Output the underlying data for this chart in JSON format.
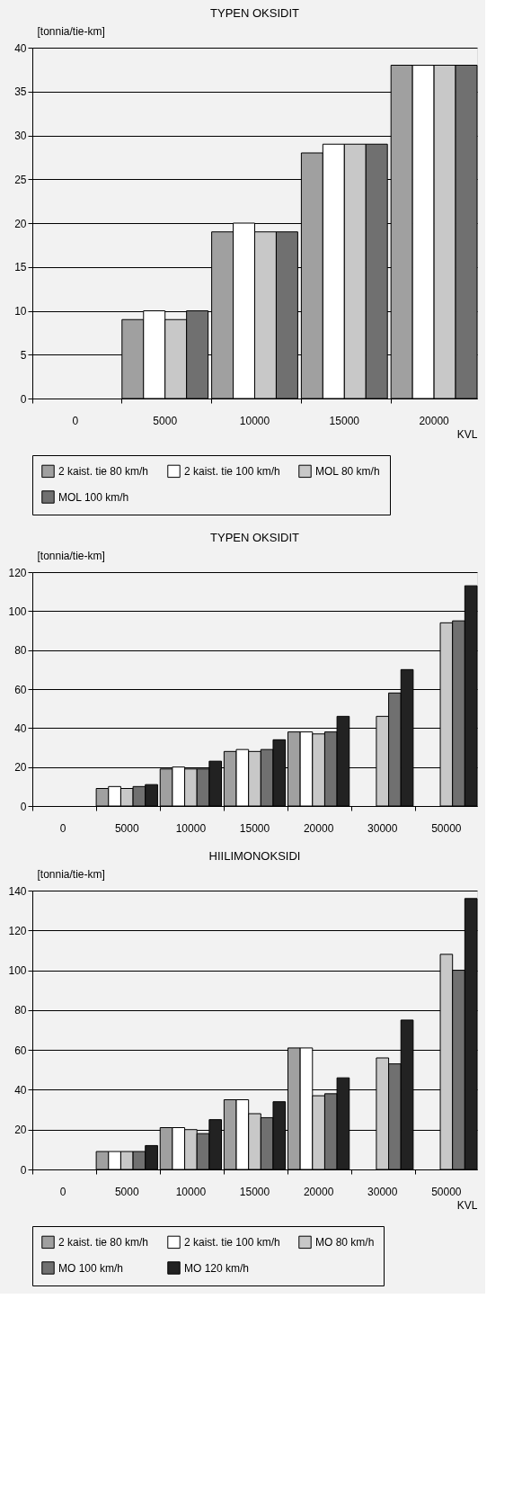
{
  "chart_data": [
    {
      "type": "bar",
      "title": "TYPEN OKSIDIT",
      "ylabel": "[tonnia/tie-km]",
      "xlabel": "KVL",
      "categories": [
        "0",
        "5000",
        "10000",
        "15000",
        "20000"
      ],
      "ylim": [
        0,
        40
      ],
      "yticks": [
        0,
        5,
        10,
        15,
        20,
        25,
        30,
        35,
        40
      ],
      "grid": "y",
      "legend": "bottom",
      "series": [
        {
          "name": "2 kaist. tie 80 km/h",
          "color": "#a0a0a0",
          "values": [
            null,
            9,
            19,
            28,
            38
          ]
        },
        {
          "name": "2 kaist. tie 100 km/h",
          "color": "#ffffff",
          "values": [
            null,
            10,
            20,
            29,
            38
          ]
        },
        {
          "name": "MOL 80 km/h",
          "color": "#c8c8c8",
          "values": [
            null,
            9,
            19,
            29,
            38
          ]
        },
        {
          "name": "MOL 100 km/h",
          "color": "#707070",
          "values": [
            null,
            10,
            19,
            29,
            38
          ]
        }
      ]
    },
    {
      "type": "bar",
      "title": "TYPEN OKSIDIT",
      "ylabel": "[tonnia/tie-km]",
      "categories": [
        "0",
        "5000",
        "10000",
        "15000",
        "20000",
        "30000",
        "50000"
      ],
      "ylim": [
        0,
        120
      ],
      "yticks": [
        0,
        20,
        40,
        60,
        80,
        100,
        120
      ],
      "grid": "y",
      "series": [
        {
          "color": "#a0a0a0",
          "values": [
            null,
            9,
            19,
            28,
            38,
            null,
            null
          ]
        },
        {
          "color": "#ffffff",
          "values": [
            null,
            10,
            20,
            29,
            38,
            null,
            null
          ]
        },
        {
          "color": "#c8c8c8",
          "values": [
            null,
            9,
            19,
            28,
            37,
            46,
            94
          ]
        },
        {
          "color": "#707070",
          "values": [
            null,
            10,
            19,
            29,
            38,
            58,
            95
          ]
        },
        {
          "color": "#222222",
          "values": [
            null,
            11,
            23,
            34,
            46,
            70,
            113
          ]
        }
      ]
    },
    {
      "type": "bar",
      "title": "HIILIMONOKSIDI",
      "ylabel": "[tonnia/tie-km]",
      "xlabel": "KVL",
      "categories": [
        "0",
        "5000",
        "10000",
        "15000",
        "20000",
        "30000",
        "50000"
      ],
      "ylim": [
        0,
        140
      ],
      "yticks": [
        0,
        20,
        40,
        60,
        80,
        100,
        120,
        140
      ],
      "grid": "y",
      "legend": "bottom",
      "series": [
        {
          "name": "2 kaist. tie 80 km/h",
          "color": "#a0a0a0",
          "values": [
            null,
            9,
            21,
            35,
            61,
            null,
            null
          ]
        },
        {
          "name": "2 kaist. tie 100 km/h",
          "color": "#ffffff",
          "values": [
            null,
            9,
            21,
            35,
            61,
            null,
            null
          ]
        },
        {
          "name": "MO 80 km/h",
          "color": "#c8c8c8",
          "values": [
            null,
            9,
            20,
            28,
            37,
            56,
            108
          ]
        },
        {
          "name": "MO 100 km/h",
          "color": "#707070",
          "values": [
            null,
            9,
            18,
            26,
            38,
            53,
            100
          ]
        },
        {
          "name": "MO 120 km/h",
          "color": "#222222",
          "values": [
            null,
            12,
            25,
            34,
            46,
            75,
            136
          ]
        }
      ]
    }
  ]
}
